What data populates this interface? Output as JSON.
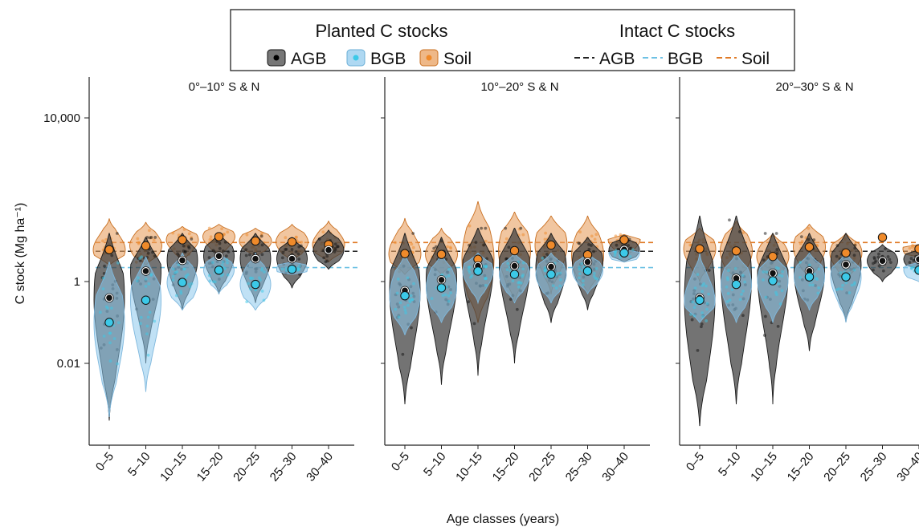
{
  "chart_data": {
    "type": "violin",
    "y_scale": "log10",
    "ylim": [
      0.0001,
      100000
    ],
    "ylabel": "C stock (Mg ha⁻¹)",
    "xlabel": "Age classes (years)",
    "y_ticks": [
      {
        "value": 0.01,
        "label": "0.01"
      },
      {
        "value": 1,
        "label": "1"
      },
      {
        "value": 10000,
        "label": "10,000"
      }
    ],
    "categories": [
      "0–5",
      "5–10",
      "10–15",
      "15–20",
      "20–25",
      "25–30",
      "30–40"
    ],
    "legend": {
      "planted_title": "Planted C stocks",
      "intact_title": "Intact C stocks",
      "planted_items": [
        "AGB",
        "BGB",
        "Soil"
      ],
      "intact_items": [
        "AGB",
        "BGB",
        "Soil"
      ]
    },
    "colors": {
      "AGB_fill": "#3d3d3d",
      "AGB_point": "#111111",
      "AGB_line": "#222222",
      "BGB_fill": "#8cc8ec",
      "BGB_point": "#3cc9e8",
      "BGB_line": "#6ec1e4",
      "Soil_fill": "#e8a060",
      "Soil_point": "#ef8a2a",
      "Soil_line": "#e07a26"
    },
    "panels": [
      {
        "title": "0°–10° S & N",
        "intact": {
          "AGB": 5.5,
          "BGB": 2.2,
          "Soil": 9.0
        },
        "means": {
          "AGB": [
            0.4,
            1.8,
            3.3,
            4.2,
            3.6,
            3.6,
            5.9
          ],
          "BGB": [
            0.1,
            0.35,
            0.95,
            1.9,
            0.85,
            2.0,
            null
          ],
          "Soil": [
            6.0,
            7.5,
            10.5,
            12.5,
            9.8,
            9.3,
            8.0
          ]
        },
        "ranges": {
          "AGB": [
            [
              0.0004,
              15
            ],
            [
              0.01,
              12
            ],
            [
              0.2,
              15
            ],
            [
              0.5,
              15
            ],
            [
              0.3,
              15
            ],
            [
              0.7,
              12
            ],
            [
              2,
              18
            ]
          ],
          "BGB": [
            [
              0.0005,
              3
            ],
            [
              0.002,
              4
            ],
            [
              0.2,
              5
            ],
            [
              0.5,
              5
            ],
            [
              0.2,
              5
            ],
            [
              1.5,
              3
            ],
            null
          ],
          "Soil": [
            [
              2.5,
              35
            ],
            [
              2.5,
              28
            ],
            [
              3,
              22
            ],
            [
              4,
              25
            ],
            [
              4,
              20
            ],
            [
              3,
              25
            ],
            [
              3,
              30
            ]
          ]
        }
      },
      {
        "title": "10°–20° S & N",
        "intact": {
          "AGB": 5.5,
          "BGB": 2.2,
          "Soil": 9.0
        },
        "means": {
          "AGB": [
            0.6,
            1.1,
            2.4,
            2.4,
            2.3,
            3.0,
            6.0
          ],
          "BGB": [
            0.45,
            0.7,
            1.8,
            1.5,
            1.5,
            1.8,
            5.0
          ],
          "Soil": [
            4.8,
            4.6,
            3.5,
            5.7,
            7.8,
            4.5,
            10.5
          ]
        },
        "ranges": {
          "AGB": [
            [
              0.001,
              15
            ],
            [
              0.003,
              12
            ],
            [
              0.005,
              20
            ],
            [
              0.01,
              20
            ],
            [
              0.1,
              15
            ],
            [
              0.2,
              12
            ],
            [
              3,
              12
            ]
          ],
          "BGB": [
            [
              0.05,
              5
            ],
            [
              0.1,
              5
            ],
            [
              0.3,
              5
            ],
            [
              0.3,
              5
            ],
            [
              0.3,
              5
            ],
            [
              0.5,
              5
            ],
            [
              3,
              6
            ]
          ],
          "Soil": [
            [
              1.5,
              35
            ],
            [
              1.5,
              20
            ],
            [
              0.1,
              90
            ],
            [
              0.3,
              50
            ],
            [
              0.5,
              40
            ],
            [
              0.5,
              40
            ],
            [
              4,
              14
            ]
          ]
        }
      },
      {
        "title": "20°–30° S & N",
        "intact": {
          "AGB": 5.5,
          "BGB": 2.2,
          "Soil": 9.0
        },
        "means": {
          "AGB": [
            0.4,
            1.2,
            1.6,
            1.8,
            2.6,
            3.2,
            3.5
          ],
          "BGB": [
            0.35,
            0.85,
            1.05,
            1.3,
            1.3,
            null,
            1.9
          ],
          "Soil": [
            6.3,
            5.6,
            4.1,
            7.0,
            5.0,
            12.0,
            6.3
          ]
        },
        "ranges": {
          "AGB": [
            [
              0.0003,
              40
            ],
            [
              0.001,
              40
            ],
            [
              0.001,
              15
            ],
            [
              0.02,
              15
            ],
            [
              0.1,
              15
            ],
            [
              1,
              8
            ],
            [
              2,
              6
            ]
          ],
          "BGB": [
            [
              0.1,
              5
            ],
            [
              0.1,
              5
            ],
            [
              0.1,
              5
            ],
            [
              0.2,
              5
            ],
            [
              0.1,
              5
            ],
            null,
            [
              1,
              3
            ]
          ],
          "Soil": [
            [
              1,
              20
            ],
            [
              1,
              30
            ],
            [
              1,
              15
            ],
            [
              1,
              25
            ],
            [
              1,
              15
            ],
            null,
            [
              4,
              8
            ]
          ]
        }
      }
    ]
  }
}
